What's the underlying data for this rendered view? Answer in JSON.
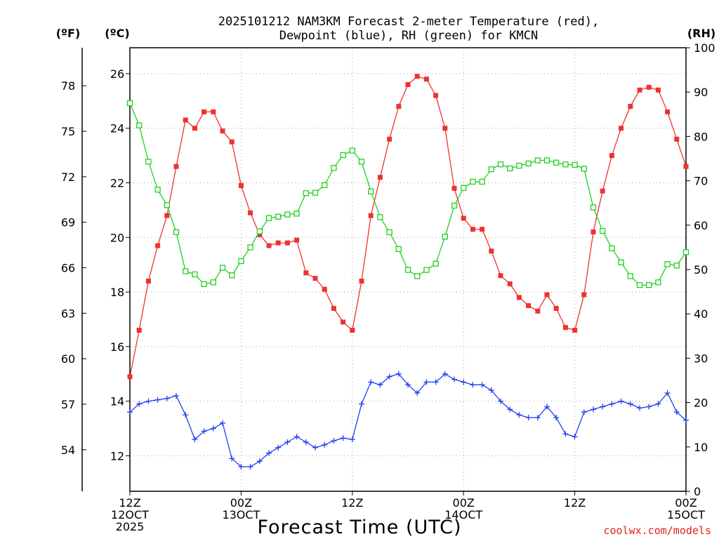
{
  "chart_data": {
    "type": "line",
    "title_lines": [
      "2025101212 NAM3KM Forecast 2-meter Temperature (red),",
      "Dewpoint (blue), RH (green) for KMCN"
    ],
    "xlabel": "Forecast Time (UTC)",
    "credit": "coolwx.com/models",
    "units": {
      "f": "(ºF)",
      "c": "(ºC)",
      "rh": "(RH)"
    },
    "x_range_hours": [
      0,
      60
    ],
    "x_ticks": [
      {
        "hour": 0,
        "lines": [
          "12Z",
          "12OCT",
          "2025"
        ]
      },
      {
        "hour": 12,
        "lines": [
          "00Z",
          "13OCT"
        ]
      },
      {
        "hour": 24,
        "lines": [
          "12Z"
        ]
      },
      {
        "hour": 36,
        "lines": [
          "00Z",
          "14OCT"
        ]
      },
      {
        "hour": 48,
        "lines": [
          "12Z"
        ]
      },
      {
        "hour": 60,
        "lines": [
          "00Z",
          "15OCT"
        ]
      }
    ],
    "celsius_axis": {
      "range": [
        10.7,
        26.95
      ],
      "ticks": [
        12,
        14,
        16,
        18,
        20,
        22,
        24,
        26
      ]
    },
    "fahrenheit_axis": {
      "ticks": [
        54,
        57,
        60,
        63,
        66,
        69,
        72,
        75,
        78
      ]
    },
    "rh_axis": {
      "range": [
        0,
        100
      ],
      "ticks": [
        0,
        10,
        20,
        30,
        40,
        50,
        60,
        70,
        80,
        90,
        100
      ]
    },
    "series": [
      {
        "name": "Temperature",
        "axis": "celsius",
        "color": "#f03030",
        "marker": "filled-square",
        "x": [
          0,
          1,
          2,
          3,
          4,
          5,
          6,
          7,
          8,
          9,
          10,
          11,
          12,
          13,
          14,
          15,
          16,
          17,
          18,
          19,
          20,
          21,
          22,
          23,
          24,
          25,
          26,
          27,
          28,
          29,
          30,
          31,
          32,
          33,
          34,
          35,
          36,
          37,
          38,
          39,
          40,
          41,
          42,
          43,
          44,
          45,
          46,
          47,
          48,
          49,
          50,
          51,
          52,
          53,
          54,
          55,
          56,
          57,
          58,
          59,
          60
        ],
        "values": [
          14.9,
          16.6,
          18.4,
          19.7,
          20.8,
          22.6,
          24.3,
          24.0,
          24.6,
          24.6,
          23.9,
          23.5,
          21.9,
          20.9,
          20.1,
          19.7,
          19.8,
          19.8,
          19.9,
          18.7,
          18.5,
          18.1,
          17.4,
          16.9,
          16.6,
          18.4,
          20.8,
          22.2,
          23.6,
          24.8,
          25.6,
          25.9,
          25.8,
          25.2,
          24.0,
          21.8,
          20.7,
          20.3,
          20.3,
          19.5,
          18.6,
          18.3,
          17.8,
          17.5,
          17.3,
          17.9,
          17.4,
          16.7,
          16.6,
          17.9,
          20.2,
          21.7,
          23.0,
          24.0,
          24.8,
          25.4,
          25.5,
          25.4,
          24.6,
          23.6,
          22.6
        ]
      },
      {
        "name": "Dewpoint",
        "axis": "celsius",
        "color": "#2040f0",
        "marker": "plus",
        "x": [
          0,
          1,
          2,
          3,
          4,
          5,
          6,
          7,
          8,
          9,
          10,
          11,
          12,
          13,
          14,
          15,
          16,
          17,
          18,
          19,
          20,
          21,
          22,
          23,
          24,
          25,
          26,
          27,
          28,
          29,
          30,
          31,
          32,
          33,
          34,
          35,
          36,
          37,
          38,
          39,
          40,
          41,
          42,
          43,
          44,
          45,
          46,
          47,
          48,
          49,
          50,
          51,
          52,
          53,
          54,
          55,
          56,
          57,
          58,
          59,
          60
        ],
        "values": [
          13.6,
          13.9,
          14.0,
          14.05,
          14.1,
          14.2,
          13.5,
          12.6,
          12.9,
          13.0,
          13.2,
          11.9,
          11.6,
          11.6,
          11.8,
          12.1,
          12.3,
          12.5,
          12.7,
          12.5,
          12.3,
          12.4,
          12.55,
          12.65,
          12.6,
          13.9,
          14.7,
          14.6,
          14.9,
          15.0,
          14.6,
          14.3,
          14.7,
          14.7,
          15.0,
          14.8,
          14.7,
          14.6,
          14.6,
          14.4,
          14.0,
          13.7,
          13.5,
          13.4,
          13.4,
          13.8,
          13.4,
          12.8,
          12.7,
          13.6,
          13.7,
          13.8,
          13.9,
          14.0,
          13.9,
          13.75,
          13.8,
          13.9,
          14.3,
          13.6,
          13.3
        ]
      },
      {
        "name": "Relative Humidity",
        "axis": "rh",
        "color": "#20d020",
        "marker": "open-square",
        "x": [
          0,
          1,
          2,
          3,
          4,
          5,
          6,
          7,
          8,
          9,
          10,
          11,
          12,
          13,
          14,
          15,
          16,
          17,
          18,
          19,
          20,
          21,
          22,
          23,
          24,
          25,
          26,
          27,
          28,
          29,
          30,
          31,
          32,
          33,
          34,
          35,
          36,
          37,
          38,
          39,
          40,
          41,
          42,
          43,
          44,
          45,
          46,
          47,
          48,
          49,
          50,
          51,
          52,
          53,
          54,
          55,
          56,
          57,
          58,
          59,
          60
        ],
        "values": [
          87.5,
          82.5,
          74.3,
          68.0,
          64.5,
          58.4,
          49.6,
          48.9,
          46.7,
          47.1,
          50.4,
          48.7,
          51.9,
          55.0,
          58.6,
          61.6,
          61.9,
          62.4,
          62.6,
          67.2,
          67.3,
          69.0,
          72.9,
          75.8,
          76.8,
          74.3,
          67.6,
          61.8,
          58.4,
          54.6,
          49.9,
          48.5,
          49.9,
          51.3,
          57.4,
          64.4,
          68.4,
          69.8,
          69.8,
          72.6,
          73.7,
          72.8,
          73.4,
          73.9,
          74.6,
          74.6,
          74.1,
          73.7,
          73.6,
          72.7,
          64.0,
          58.7,
          54.8,
          51.6,
          48.5,
          46.5,
          46.5,
          47.1,
          51.2,
          50.9,
          53.9
        ]
      }
    ]
  }
}
